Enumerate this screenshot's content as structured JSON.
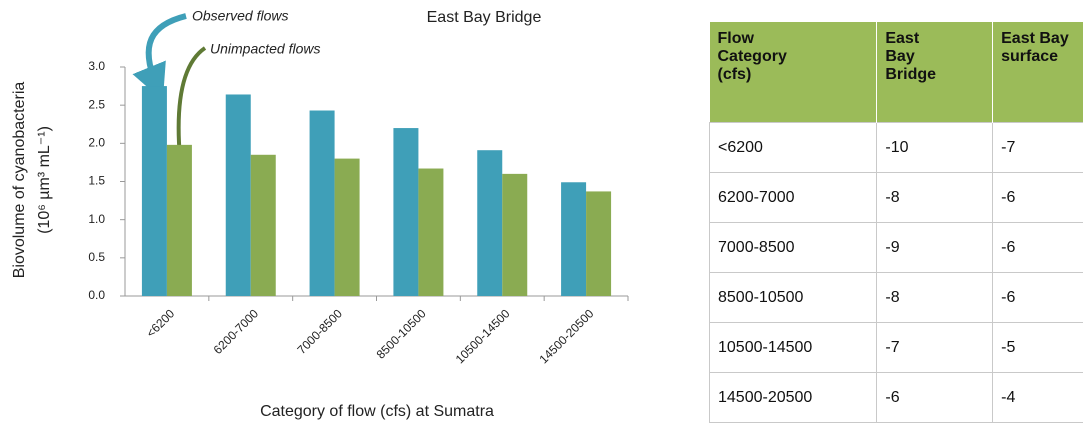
{
  "chart_data": {
    "type": "bar",
    "title": "East Bay Bridge",
    "categories": [
      "<6200",
      "6200-7000",
      "7000-8500",
      "8500-10500",
      "10500-14500",
      "14500-20500"
    ],
    "series": [
      {
        "name": "Observed flows",
        "color": "#3f9fb8",
        "values": [
          2.75,
          2.64,
          2.43,
          2.2,
          1.91,
          1.49
        ]
      },
      {
        "name": "Unimpacted flows",
        "color": "#8aab52",
        "values": [
          1.98,
          1.85,
          1.8,
          1.67,
          1.6,
          1.37
        ]
      }
    ],
    "ylim": [
      0,
      3
    ],
    "yticks": [
      {
        "value": 0,
        "label": "0.0"
      },
      {
        "value": 0.5,
        "label": "0.5"
      },
      {
        "value": 1,
        "label": "1.0"
      },
      {
        "value": 1.5,
        "label": "1.5"
      },
      {
        "value": 2,
        "label": "2.0"
      },
      {
        "value": 2.5,
        "label": "2.5"
      },
      {
        "value": 3,
        "label": "3.0"
      }
    ],
    "ylabel": [
      "Biovolume of cyanobacteria",
      "(10⁶ µm³ mL⁻¹)"
    ],
    "xlabel": "Category of flow (cfs) at Sumatra",
    "grid": false
  },
  "table": {
    "header": [
      "Flow Category (cfs)",
      "East Bay Bridge",
      "East Bay surface"
    ],
    "rows": [
      [
        "<6200",
        "-10",
        "-7"
      ],
      [
        "6200-7000",
        "-8",
        "-6"
      ],
      [
        "7000-8500",
        "-9",
        "-6"
      ],
      [
        "8500-10500",
        "-8",
        "-6"
      ],
      [
        "10500-14500",
        "-7",
        "-5"
      ],
      [
        "14500-20500",
        "-6",
        "-4"
      ]
    ]
  }
}
